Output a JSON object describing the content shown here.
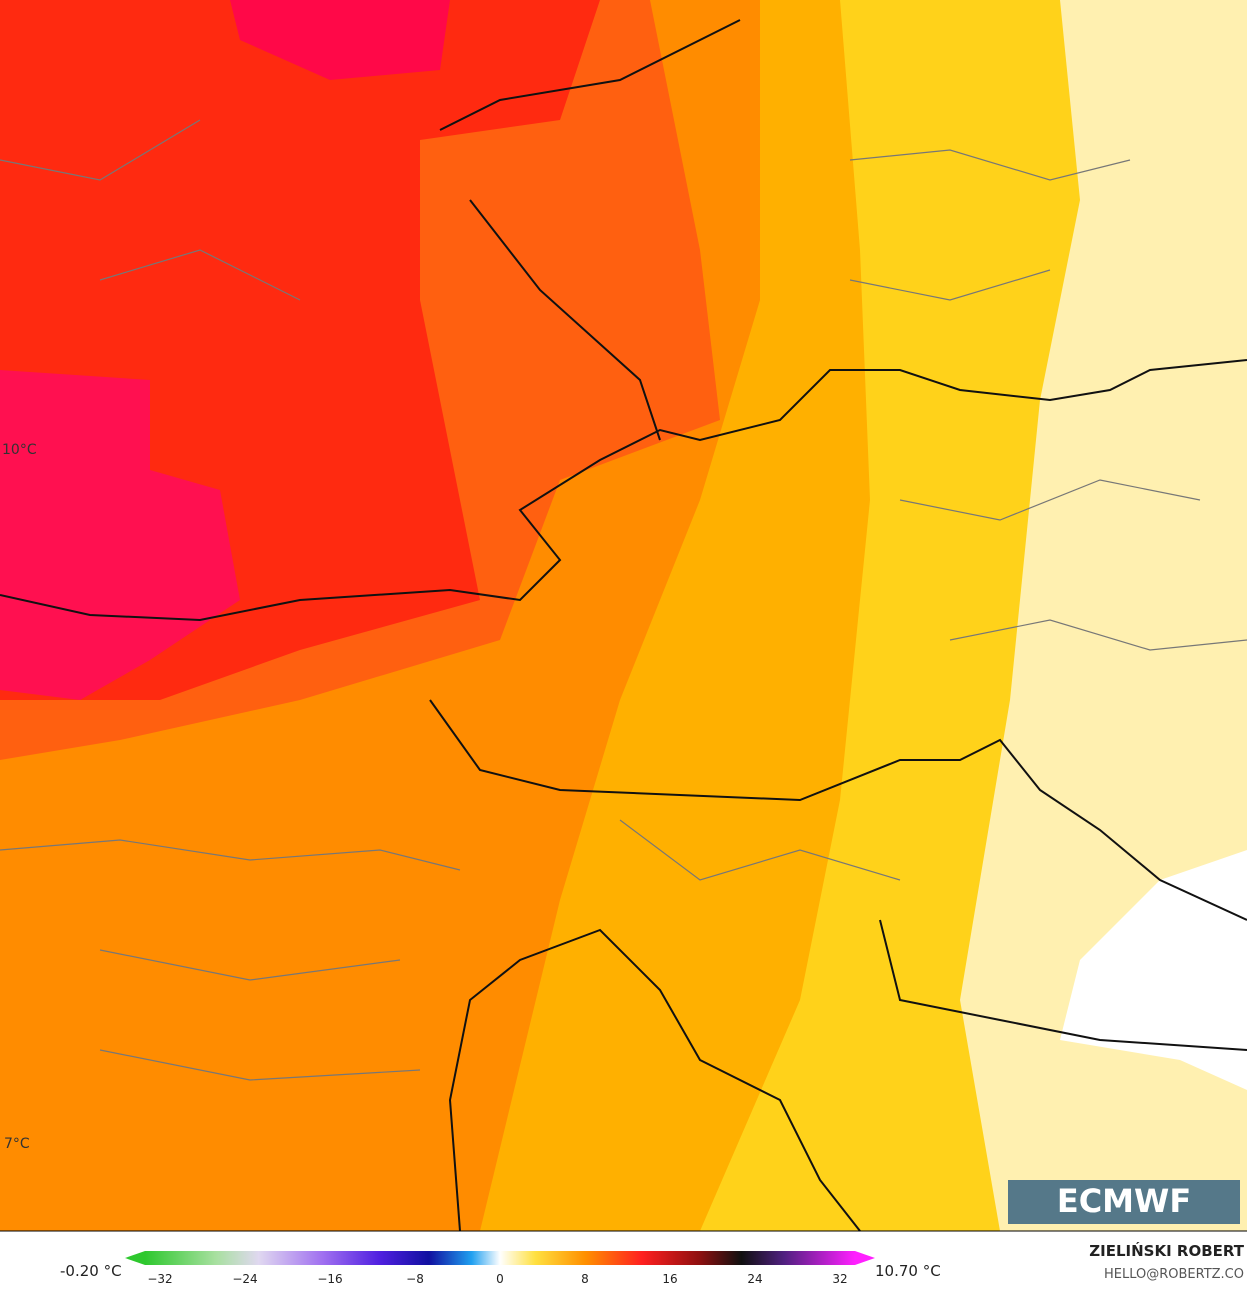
{
  "map": {
    "labels": [
      "10°C",
      "7°C"
    ],
    "logo": "ECMWF"
  },
  "legend": {
    "min": "-0.20 °C",
    "max": "10.70 °C",
    "ticks": [
      "−32",
      "−24",
      "−16",
      "−8",
      "0",
      "8",
      "16",
      "24",
      "32"
    ]
  },
  "credit": {
    "author": "ZIELIŃSKI ROBERT",
    "contact": "HELLO@ROBERTZ.CO"
  }
}
